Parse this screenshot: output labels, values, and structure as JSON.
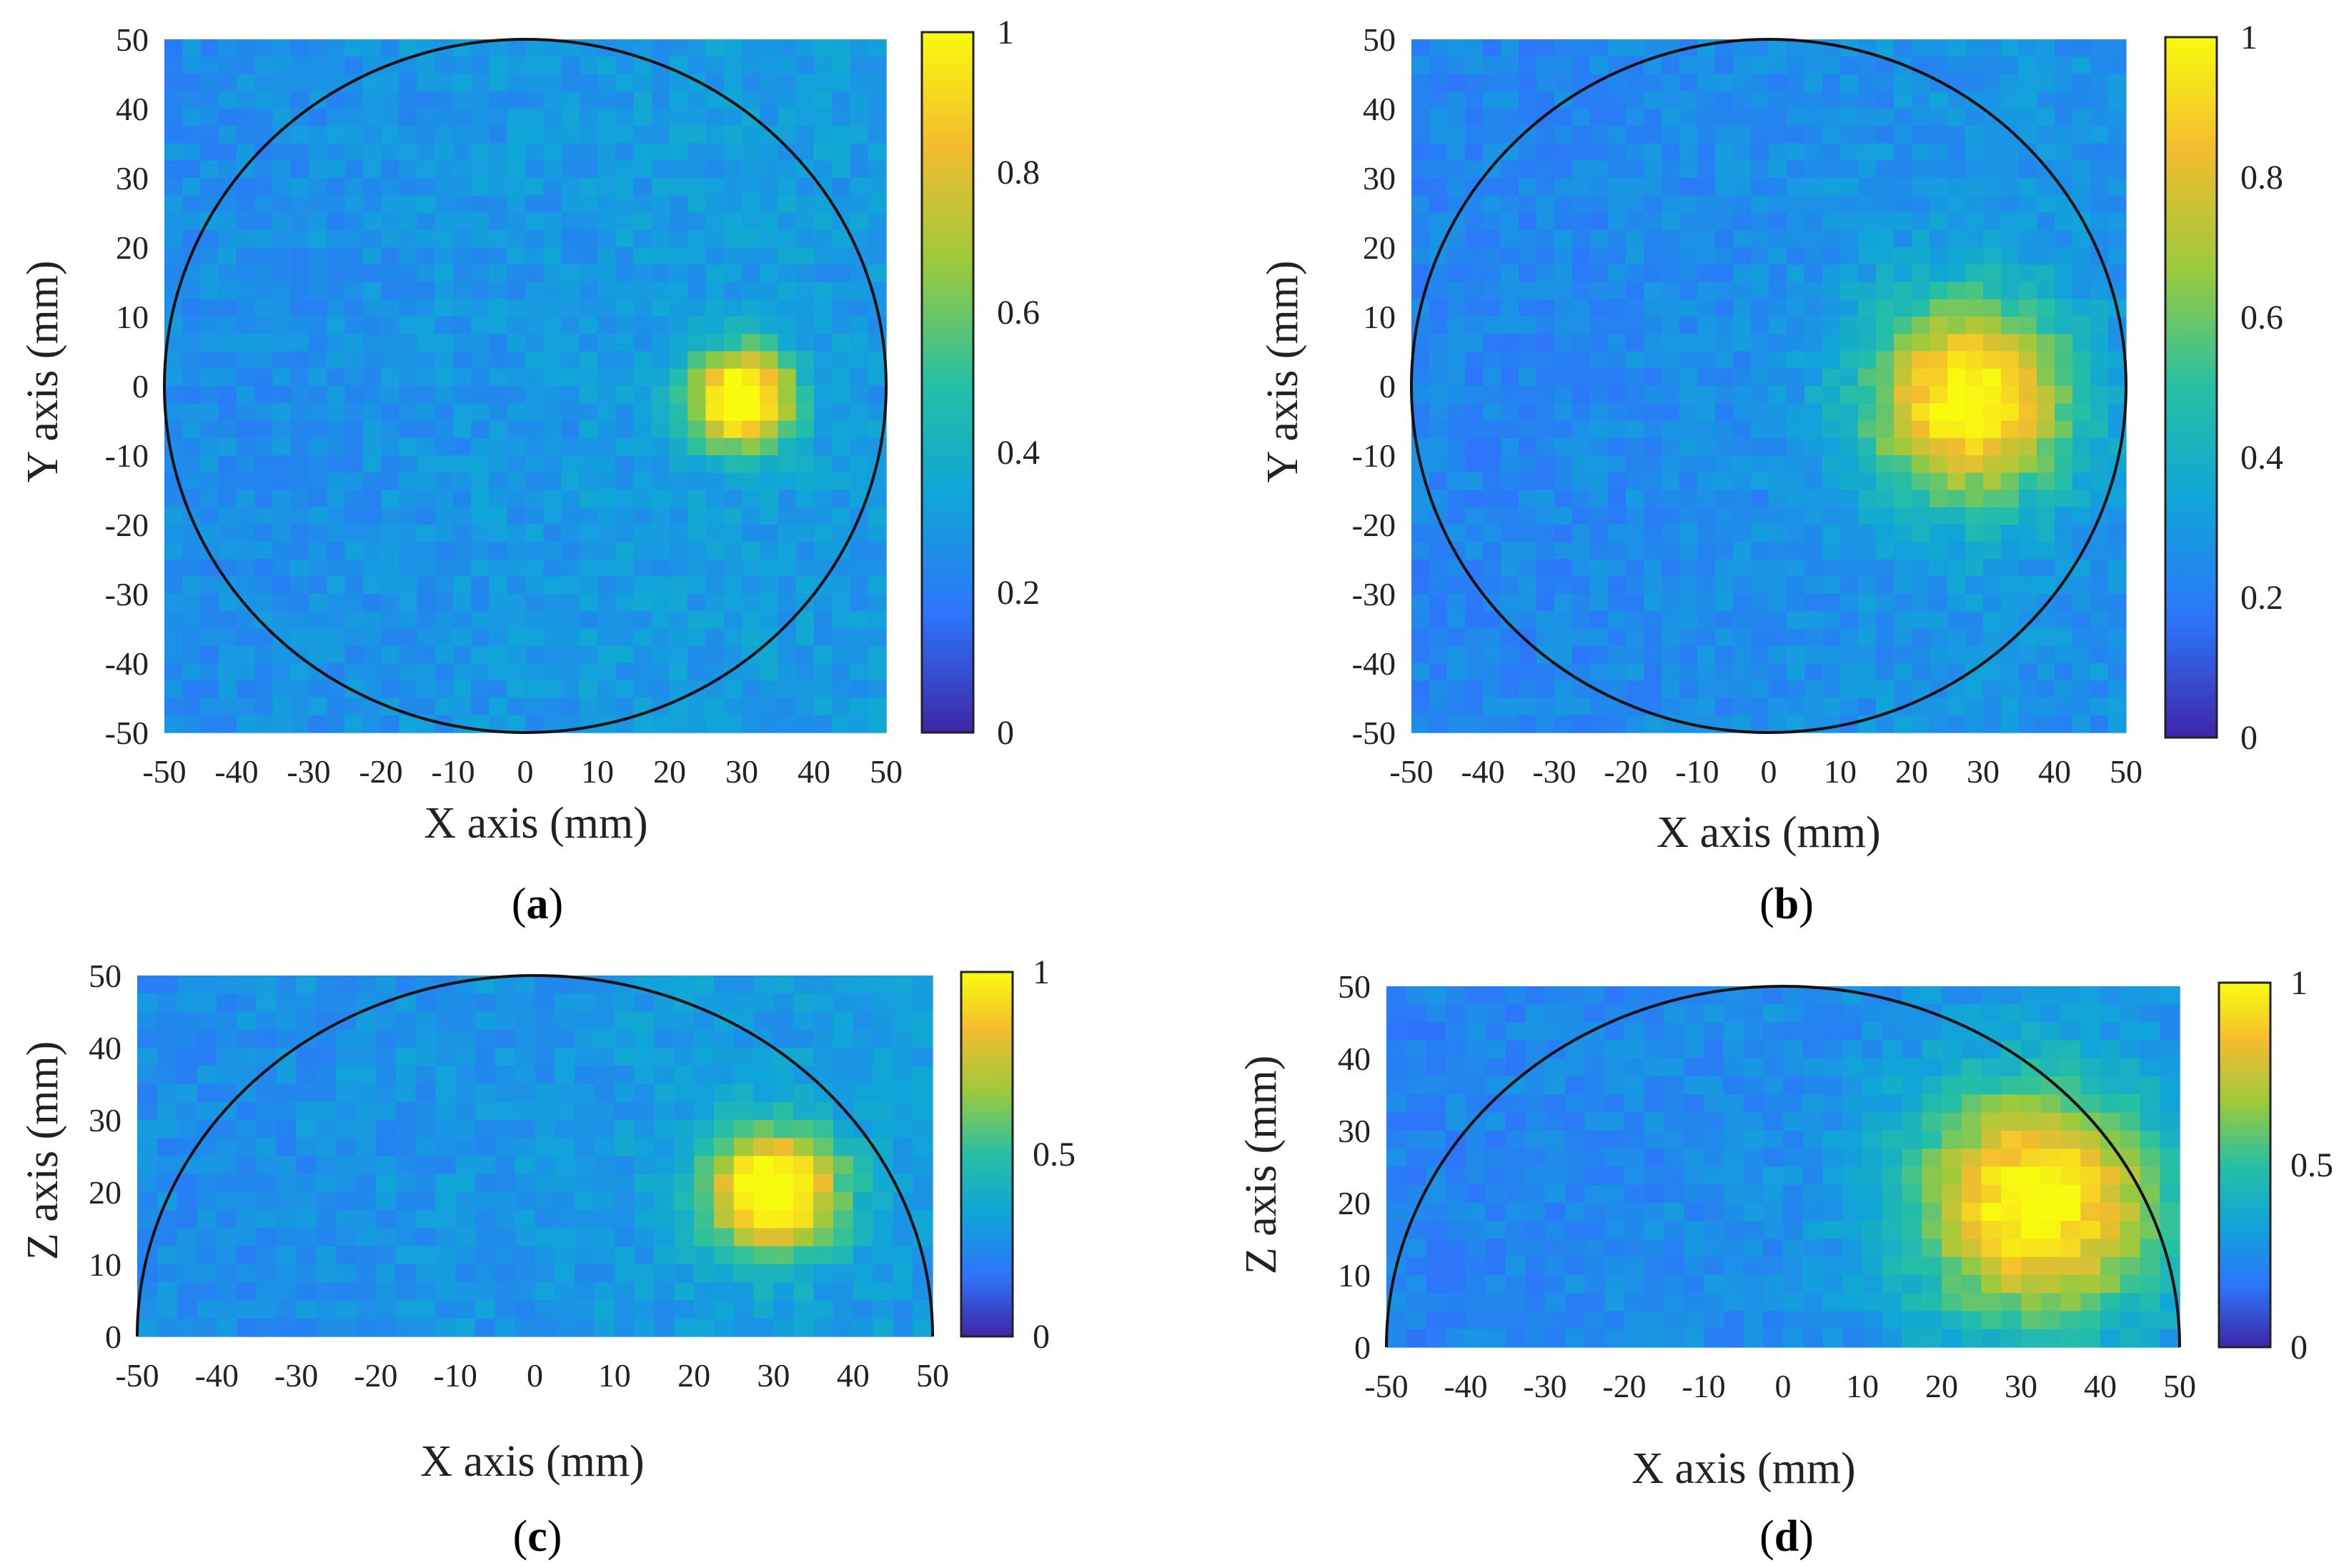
{
  "chart_data": [
    {
      "panel_label": "a",
      "type": "heatmap",
      "xlabel": "X axis (mm)",
      "ylabel": "Y axis (mm)",
      "xlim": [
        -50,
        50
      ],
      "ylim": [
        -50,
        50
      ],
      "xticks": [
        "-50",
        "-40",
        "-30",
        "-20",
        "-10",
        "0",
        "10",
        "20",
        "30",
        "40",
        "50"
      ],
      "yticks": [
        "50",
        "40",
        "30",
        "20",
        "10",
        "0",
        "-10",
        "-20",
        "-30",
        "-40",
        "-50"
      ],
      "colorbar": {
        "range": [
          0,
          1
        ],
        "ticks": [
          "1",
          "0.8",
          "0.6",
          "0.4",
          "0.2",
          "0"
        ]
      },
      "outline": {
        "shape": "circle",
        "center": [
          0,
          0
        ],
        "radius": 50
      },
      "hotspot": {
        "x": 30,
        "y": -2,
        "radius_mm": 5,
        "peak": 1.0
      },
      "background_level": 0.25
    },
    {
      "panel_label": "b",
      "type": "heatmap",
      "xlabel": "X axis (mm)",
      "ylabel": "Y axis (mm)",
      "xlim": [
        -50,
        50
      ],
      "ylim": [
        -50,
        50
      ],
      "xticks": [
        "-50",
        "-40",
        "-30",
        "-20",
        "-10",
        "0",
        "10",
        "20",
        "30",
        "40",
        "50"
      ],
      "yticks": [
        "50",
        "40",
        "30",
        "20",
        "10",
        "0",
        "-10",
        "-20",
        "-30",
        "-40",
        "-50"
      ],
      "colorbar": {
        "range": [
          0,
          1
        ],
        "ticks": [
          "1",
          "0.8",
          "0.6",
          "0.4",
          "0.2",
          "0"
        ]
      },
      "outline": {
        "shape": "circle",
        "center": [
          0,
          0
        ],
        "radius": 50
      },
      "hotspot": {
        "x": 28,
        "y": -2,
        "radius_mm": 10,
        "peak": 0.9
      },
      "background_level": 0.22
    },
    {
      "panel_label": "c",
      "type": "heatmap",
      "xlabel": "X axis (mm)",
      "ylabel": "Z axis (mm)",
      "xlim": [
        -50,
        50
      ],
      "ylim": [
        0,
        50
      ],
      "xticks": [
        "-50",
        "-40",
        "-30",
        "-20",
        "-10",
        "0",
        "10",
        "20",
        "30",
        "40",
        "50"
      ],
      "yticks": [
        "50",
        "40",
        "30",
        "20",
        "10",
        "0"
      ],
      "colorbar": {
        "range": [
          0,
          1
        ],
        "ticks": [
          "1",
          "0.5",
          "0"
        ]
      },
      "outline": {
        "shape": "half-circle",
        "center": [
          0,
          0
        ],
        "radius": 50
      },
      "hotspot": {
        "x": 30,
        "y": 20,
        "radius_mm": 6,
        "peak": 1.0
      },
      "background_level": 0.25
    },
    {
      "panel_label": "d",
      "type": "heatmap",
      "xlabel": "X axis (mm)",
      "ylabel": "Z axis (mm)",
      "xlim": [
        -50,
        50
      ],
      "ylim": [
        0,
        50
      ],
      "xticks": [
        "-50",
        "-40",
        "-30",
        "-20",
        "-10",
        "0",
        "10",
        "20",
        "30",
        "40",
        "50"
      ],
      "yticks": [
        "50",
        "40",
        "30",
        "20",
        "10",
        "0"
      ],
      "colorbar": {
        "range": [
          0,
          1
        ],
        "ticks": [
          "1",
          "0.5",
          "0"
        ]
      },
      "outline": {
        "shape": "half-circle",
        "center": [
          0,
          0
        ],
        "radius": 50
      },
      "hotspot": {
        "x": 32,
        "y": 20,
        "radius_mm": 11,
        "peak": 0.9
      },
      "background_level": 0.22
    }
  ],
  "colors": {
    "colormap": [
      "#3e26a8",
      "#2d76fa",
      "#10a5d8",
      "#27c0a3",
      "#9cca3c",
      "#f3bd2f",
      "#f9fb0e"
    ],
    "outline": "#111111",
    "text": "#222222"
  }
}
